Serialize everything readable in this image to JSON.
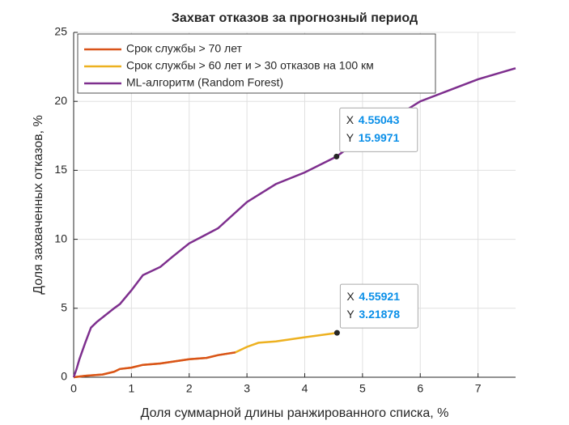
{
  "chart_data": {
    "type": "line",
    "title": "Захват отказов за прогнозный период",
    "xlabel": "Доля суммарной длины ранжированного списка, %",
    "ylabel": "Доля захваченных отказов, %",
    "xlim": [
      0,
      7.65
    ],
    "ylim": [
      0,
      25
    ],
    "xticks": [
      0,
      1,
      2,
      3,
      4,
      5,
      6,
      7
    ],
    "yticks": [
      0,
      5,
      10,
      15,
      20,
      25
    ],
    "grid": true,
    "legend": "upper left",
    "series": [
      {
        "name": "Срок службы > 60 лет и > 30 отказов на 100 км",
        "color": "#edb120",
        "x": [
          0,
          0.2,
          0.5,
          0.7,
          0.8,
          1.0,
          1.2,
          1.5,
          2.0,
          2.3,
          2.5,
          2.8,
          3.0,
          3.2,
          3.5,
          4.0,
          4.55921
        ],
        "values": [
          0,
          0.1,
          0.2,
          0.4,
          0.6,
          0.7,
          0.9,
          1.0,
          1.3,
          1.4,
          1.6,
          1.8,
          2.2,
          2.5,
          2.6,
          2.9,
          3.21878
        ]
      },
      {
        "name": "Срок службы > 70 лет",
        "color": "#d95319",
        "x": [
          0,
          0.2,
          0.5,
          0.7,
          0.8,
          1.0,
          1.2,
          1.5,
          2.0,
          2.3,
          2.5,
          2.8
        ],
        "values": [
          0,
          0.1,
          0.2,
          0.4,
          0.6,
          0.7,
          0.9,
          1.0,
          1.3,
          1.4,
          1.6,
          1.8
        ]
      },
      {
        "name": "ML-алгоритм (Random Forest)",
        "color": "#7e2f8e",
        "x": [
          0,
          0.05,
          0.1,
          0.2,
          0.3,
          0.4,
          0.7,
          0.8,
          1.0,
          1.2,
          1.5,
          1.7,
          2.0,
          2.5,
          3.0,
          3.5,
          4.0,
          4.55043,
          5.0,
          5.5,
          6.0,
          6.5,
          7.0,
          7.65
        ],
        "values": [
          0,
          0.6,
          1.3,
          2.5,
          3.6,
          4.0,
          5.0,
          5.3,
          6.3,
          7.4,
          8.0,
          8.7,
          9.7,
          10.8,
          12.7,
          14.0,
          14.85,
          15.9971,
          17.4,
          18.7,
          20.0,
          20.8,
          21.6,
          22.4
        ]
      }
    ],
    "legend_order": [
      1,
      0,
      2
    ],
    "datatips": [
      {
        "x_label": "X",
        "x": 4.55043,
        "y_label": "Y",
        "y": 15.9971
      },
      {
        "x_label": "X",
        "x": 4.55921,
        "y_label": "Y",
        "y": 3.21878
      }
    ]
  }
}
